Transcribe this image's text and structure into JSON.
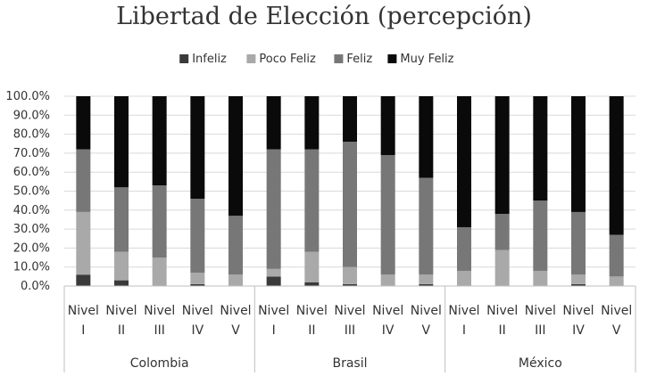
{
  "chart_data": {
    "type": "bar",
    "stacked": true,
    "title": "Libertad de Elección (percepción)",
    "legend_position": "top",
    "grid": true,
    "ylim": [
      0,
      100
    ],
    "y_ticks": [
      "0.0%",
      "10.0%",
      "20.0%",
      "30.0%",
      "40.0%",
      "50.0%",
      "60.0%",
      "70.0%",
      "80.0%",
      "90.0%",
      "100.0%"
    ],
    "groups": [
      {
        "label": "Colombia",
        "categories": [
          [
            "Nivel",
            "I"
          ],
          [
            "Nivel",
            "II"
          ],
          [
            "Nivel",
            "III"
          ],
          [
            "Nivel",
            "IV"
          ],
          [
            "Nivel",
            "V"
          ]
        ]
      },
      {
        "label": "Brasil",
        "categories": [
          [
            "Nivel",
            "I"
          ],
          [
            "Nivel",
            "II"
          ],
          [
            "Nivel",
            "III"
          ],
          [
            "Nivel",
            "IV"
          ],
          [
            "Nivel",
            "V"
          ]
        ]
      },
      {
        "label": "México",
        "categories": [
          [
            "Nivel",
            "I"
          ],
          [
            "Nivel",
            "II"
          ],
          [
            "Nivel",
            "III"
          ],
          [
            "Nivel",
            "IV"
          ],
          [
            "Nivel",
            "V"
          ]
        ]
      }
    ],
    "series": [
      {
        "name": "Infeliz",
        "color": "#3a3a3a",
        "values": [
          6,
          3,
          0,
          1,
          0,
          5,
          2,
          1,
          0,
          1,
          0,
          0,
          0,
          1,
          0
        ]
      },
      {
        "name": "Poco Feliz",
        "color": "#a9a9a9",
        "values": [
          33,
          15,
          15,
          6,
          6,
          4,
          16,
          9,
          6,
          5,
          8,
          19,
          8,
          5,
          5
        ]
      },
      {
        "name": "Feliz",
        "color": "#777777",
        "values": [
          33,
          34,
          38,
          39,
          31,
          63,
          54,
          66,
          63,
          51,
          23,
          19,
          37,
          33,
          22
        ]
      },
      {
        "name": "Muy Feliz",
        "color": "#0a0a0a",
        "values": [
          28,
          48,
          47,
          54,
          63,
          28,
          28,
          24,
          31,
          43,
          69,
          62,
          55,
          61,
          73
        ]
      }
    ]
  }
}
